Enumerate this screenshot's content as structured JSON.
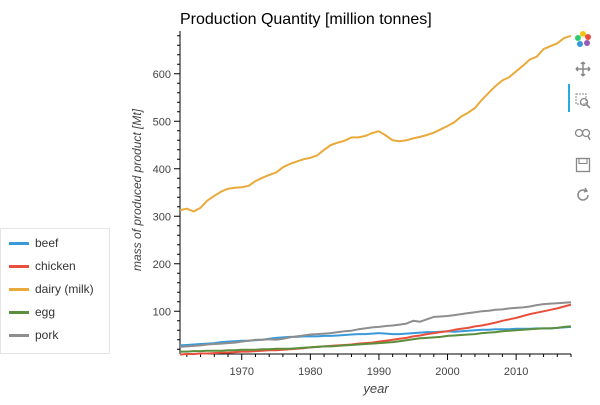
{
  "chart_data": {
    "type": "line",
    "title": "Production Quantity [million tonnes]",
    "xlabel": "year",
    "ylabel": "mass of produced product [Mt]",
    "xlim": [
      1961,
      2018
    ],
    "ylim": [
      10,
      690
    ],
    "x_ticks": [
      1970,
      1980,
      1990,
      2000,
      2010
    ],
    "y_ticks": [
      100,
      200,
      300,
      400,
      500,
      600
    ],
    "grid": false,
    "legend_position": "bottom-left",
    "x": [
      1961,
      1962,
      1963,
      1964,
      1965,
      1966,
      1967,
      1968,
      1969,
      1970,
      1971,
      1972,
      1973,
      1974,
      1975,
      1976,
      1977,
      1978,
      1979,
      1980,
      1981,
      1982,
      1983,
      1984,
      1985,
      1986,
      1987,
      1988,
      1989,
      1990,
      1991,
      1992,
      1993,
      1994,
      1995,
      1996,
      1997,
      1998,
      1999,
      2000,
      2001,
      2002,
      2003,
      2004,
      2005,
      2006,
      2007,
      2008,
      2009,
      2010,
      2011,
      2012,
      2013,
      2014,
      2015,
      2016,
      2017,
      2018
    ],
    "series": [
      {
        "name": "beef",
        "color": "#3a9ad9",
        "values": [
          28,
          29,
          30,
          31,
          32,
          33,
          35,
          36,
          37,
          38,
          38,
          39,
          40,
          42,
          44,
          45,
          46,
          46,
          47,
          47,
          47,
          48,
          48,
          49,
          50,
          51,
          52,
          52,
          53,
          54,
          53,
          52,
          52,
          53,
          54,
          55,
          56,
          56,
          57,
          58,
          57,
          58,
          59,
          60,
          61,
          61,
          62,
          62,
          62,
          63,
          63,
          63,
          64,
          64,
          64,
          65,
          66,
          67
        ]
      },
      {
        "name": "chicken",
        "color": "#e8503c",
        "values": [
          9,
          10,
          10,
          11,
          11,
          12,
          13,
          13,
          14,
          15,
          15,
          16,
          17,
          18,
          18,
          19,
          20,
          21,
          22,
          24,
          25,
          26,
          27,
          28,
          29,
          30,
          32,
          33,
          34,
          36,
          38,
          40,
          42,
          44,
          47,
          49,
          52,
          54,
          56,
          58,
          61,
          63,
          65,
          68,
          70,
          73,
          76,
          80,
          83,
          86,
          90,
          94,
          97,
          100,
          103,
          106,
          110,
          114
        ]
      },
      {
        "name": "dairy (milk)",
        "color": "#e9aa3a",
        "values": [
          313,
          316,
          310,
          318,
          333,
          343,
          352,
          358,
          360,
          361,
          364,
          374,
          381,
          387,
          392,
          403,
          410,
          415,
          420,
          423,
          428,
          440,
          450,
          455,
          459,
          466,
          466,
          469,
          475,
          479,
          470,
          460,
          458,
          460,
          464,
          467,
          471,
          476,
          483,
          490,
          498,
          510,
          518,
          528,
          545,
          560,
          574,
          586,
          593,
          605,
          617,
          630,
          636,
          652,
          658,
          664,
          675,
          680
        ]
      },
      {
        "name": "egg",
        "color": "#5b8f3d",
        "values": [
          15,
          15,
          16,
          16,
          17,
          17,
          17,
          18,
          18,
          19,
          19,
          19,
          20,
          20,
          21,
          21,
          21,
          22,
          23,
          24,
          25,
          26,
          26,
          27,
          28,
          29,
          30,
          31,
          32,
          33,
          34,
          35,
          37,
          39,
          41,
          43,
          44,
          45,
          46,
          48,
          49,
          50,
          51,
          52,
          54,
          55,
          56,
          58,
          59,
          60,
          61,
          62,
          63,
          64,
          64,
          65,
          67,
          68
        ]
      },
      {
        "name": "pork",
        "color": "#8e8e8e",
        "values": [
          25,
          26,
          27,
          28,
          30,
          31,
          32,
          33,
          34,
          36,
          38,
          40,
          40,
          41,
          40,
          42,
          45,
          47,
          49,
          51,
          52,
          53,
          54,
          56,
          58,
          59,
          62,
          64,
          66,
          67,
          69,
          70,
          72,
          74,
          80,
          78,
          83,
          88,
          89,
          90,
          92,
          94,
          96,
          98,
          100,
          101,
          103,
          104,
          106,
          107,
          108,
          110,
          113,
          115,
          116,
          117,
          118,
          119
        ]
      }
    ]
  },
  "toolbar": {
    "tools": [
      "logo-icon",
      "pan-icon",
      "box-zoom-icon",
      "wheel-zoom-icon",
      "save-icon",
      "reset-icon"
    ]
  }
}
